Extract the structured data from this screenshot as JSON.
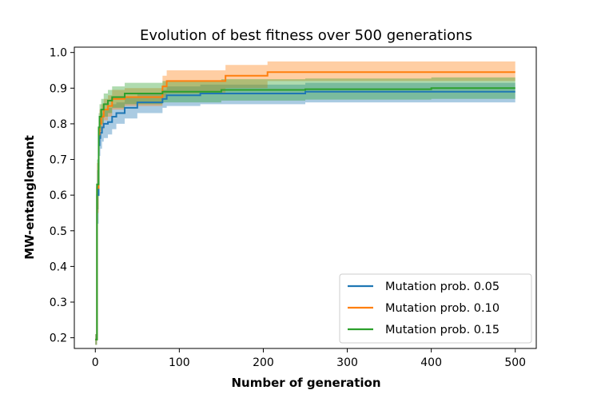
{
  "chart_data": {
    "type": "line",
    "title": "Evolution of best fitness over 500 generations",
    "xlabel": "Number of generation",
    "ylabel": "MW-entanglement",
    "xlim": [
      -25,
      525
    ],
    "ylim": [
      0.17,
      1.015
    ],
    "xticks": [
      0,
      100,
      200,
      300,
      400,
      500
    ],
    "yticks": [
      0.2,
      0.3,
      0.4,
      0.5,
      0.6,
      0.7,
      0.8,
      0.9,
      1.0
    ],
    "ytick_labels": [
      "0.2",
      "0.3",
      "0.4",
      "0.5",
      "0.6",
      "0.7",
      "0.8",
      "0.9",
      "1.0"
    ],
    "grid": false,
    "legend_position": "lower-right",
    "series": [
      {
        "name": "Mutation prob. 0.05",
        "color": "#1f77b4",
        "band_color": "#1f77b4",
        "x": [
          0,
          2,
          4,
          5,
          6,
          8,
          10,
          15,
          20,
          25,
          35,
          50,
          80,
          85,
          125,
          250,
          500
        ],
        "y": [
          0.195,
          0.6,
          0.74,
          0.76,
          0.775,
          0.79,
          0.8,
          0.805,
          0.82,
          0.83,
          0.845,
          0.86,
          0.87,
          0.88,
          0.885,
          0.89,
          0.89
        ],
        "lower": [
          0.18,
          0.52,
          0.68,
          0.71,
          0.73,
          0.75,
          0.76,
          0.77,
          0.785,
          0.8,
          0.815,
          0.83,
          0.845,
          0.85,
          0.855,
          0.86,
          0.86
        ],
        "upper": [
          0.21,
          0.67,
          0.79,
          0.81,
          0.82,
          0.83,
          0.84,
          0.845,
          0.855,
          0.86,
          0.875,
          0.885,
          0.895,
          0.905,
          0.91,
          0.915,
          0.915
        ]
      },
      {
        "name": "Mutation prob. 0.10",
        "color": "#ff7f0e",
        "band_color": "#ff7f0e",
        "x": [
          0,
          2,
          4,
          5,
          7,
          10,
          15,
          20,
          35,
          80,
          85,
          155,
          205,
          500
        ],
        "y": [
          0.195,
          0.62,
          0.77,
          0.8,
          0.82,
          0.84,
          0.85,
          0.87,
          0.875,
          0.905,
          0.92,
          0.935,
          0.945,
          0.945
        ],
        "lower": [
          0.18,
          0.55,
          0.72,
          0.76,
          0.785,
          0.81,
          0.82,
          0.84,
          0.85,
          0.875,
          0.885,
          0.9,
          0.92,
          0.92
        ],
        "upper": [
          0.21,
          0.69,
          0.81,
          0.84,
          0.855,
          0.87,
          0.88,
          0.895,
          0.9,
          0.935,
          0.95,
          0.965,
          0.975,
          0.975
        ]
      },
      {
        "name": "Mutation prob. 0.15",
        "color": "#2ca02c",
        "band_color": "#2ca02c",
        "x": [
          0,
          2,
          4,
          5,
          7,
          10,
          15,
          20,
          35,
          80,
          150,
          250,
          400,
          500
        ],
        "y": [
          0.195,
          0.63,
          0.79,
          0.82,
          0.84,
          0.855,
          0.865,
          0.875,
          0.885,
          0.89,
          0.895,
          0.897,
          0.9,
          0.9
        ],
        "lower": [
          0.18,
          0.56,
          0.74,
          0.78,
          0.8,
          0.82,
          0.83,
          0.845,
          0.855,
          0.86,
          0.865,
          0.868,
          0.87,
          0.87
        ],
        "upper": [
          0.21,
          0.7,
          0.83,
          0.855,
          0.87,
          0.885,
          0.895,
          0.905,
          0.915,
          0.92,
          0.925,
          0.927,
          0.93,
          0.93
        ]
      }
    ]
  }
}
